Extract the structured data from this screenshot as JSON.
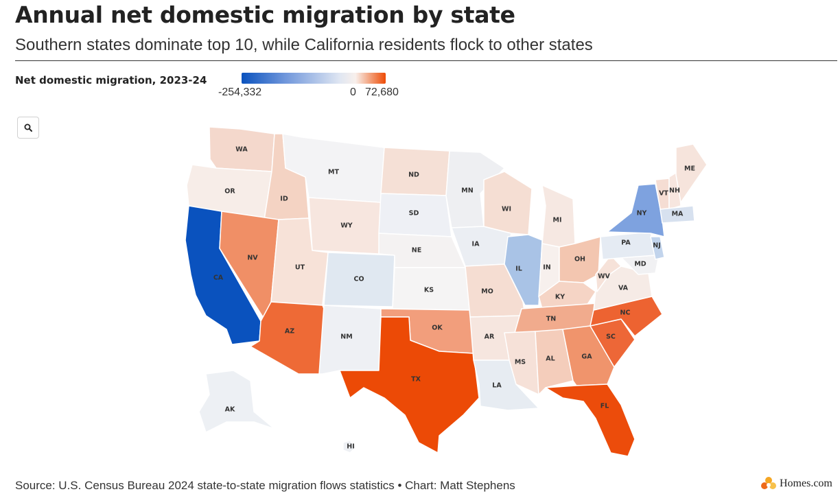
{
  "header": {
    "title": "Annual net domestic migration by state",
    "subtitle": "Southern states dominate top 10, while California residents flock to other states"
  },
  "legend": {
    "title": "Net domestic migration, 2023-24",
    "min_label": "-254,332",
    "zero_label": "0",
    "max_label": "72,680",
    "colors": {
      "min": "#0a52be",
      "zero": "#f8f0ec",
      "max": "#ee4b06"
    }
  },
  "controls": {
    "zoom_icon": "search-icon"
  },
  "footer": {
    "source": "Source: U.S. Census Bureau 2024 state-to-state migration flows statistics • Chart: Matt Stephens",
    "brand": "Homes.com",
    "brand_icon": "homes-logo-icon"
  },
  "map_data": {
    "type": "choropleth",
    "region": "United States",
    "states": [
      {
        "abbr": "WA",
        "color": "#f4d8cc"
      },
      {
        "abbr": "OR",
        "color": "#f7ede8"
      },
      {
        "abbr": "CA",
        "color": "#0a52be"
      },
      {
        "abbr": "ID",
        "color": "#f4d3c3"
      },
      {
        "abbr": "NV",
        "color": "#f08f66"
      },
      {
        "abbr": "MT",
        "color": "#f3f3f5"
      },
      {
        "abbr": "WY",
        "color": "#f7e6df"
      },
      {
        "abbr": "UT",
        "color": "#f7e2d8"
      },
      {
        "abbr": "AZ",
        "color": "#ee6a36"
      },
      {
        "abbr": "CO",
        "color": "#e0e8f1"
      },
      {
        "abbr": "NM",
        "color": "#eef0f4"
      },
      {
        "abbr": "ND",
        "color": "#f5e0d6"
      },
      {
        "abbr": "SD",
        "color": "#eef0f5"
      },
      {
        "abbr": "NE",
        "color": "#f4f2f2"
      },
      {
        "abbr": "KS",
        "color": "#f5f4f4"
      },
      {
        "abbr": "OK",
        "color": "#f29e7c"
      },
      {
        "abbr": "TX",
        "color": "#ec4a06"
      },
      {
        "abbr": "MN",
        "color": "#eeeff2"
      },
      {
        "abbr": "IA",
        "color": "#ebeef3"
      },
      {
        "abbr": "MO",
        "color": "#f5ddd2"
      },
      {
        "abbr": "AR",
        "color": "#f6e6df"
      },
      {
        "abbr": "LA",
        "color": "#e7ecf2"
      },
      {
        "abbr": "WI",
        "color": "#f5ded3"
      },
      {
        "abbr": "IL",
        "color": "#a9c3e6"
      },
      {
        "abbr": "MI",
        "color": "#f6e8e2"
      },
      {
        "abbr": "IN",
        "color": "#f7f0ed"
      },
      {
        "abbr": "OH",
        "color": "#f3c6b0"
      },
      {
        "abbr": "KY",
        "color": "#f5d4c5"
      },
      {
        "abbr": "TN",
        "color": "#f1ab8d"
      },
      {
        "abbr": "MS",
        "color": "#f6e1d8"
      },
      {
        "abbr": "AL",
        "color": "#f4cdbb"
      },
      {
        "abbr": "GA",
        "color": "#f0946c"
      },
      {
        "abbr": "FL",
        "color": "#ec4c0b"
      },
      {
        "abbr": "SC",
        "color": "#ed6737"
      },
      {
        "abbr": "NC",
        "color": "#ed6331"
      },
      {
        "abbr": "VA",
        "color": "#f6ebe6"
      },
      {
        "abbr": "WV",
        "color": "#f6e2d9"
      },
      {
        "abbr": "MD",
        "color": "#f1f1f3"
      },
      {
        "abbr": "PA",
        "color": "#e5ebf3"
      },
      {
        "abbr": "NY",
        "color": "#7ea2df"
      },
      {
        "abbr": "NJ",
        "color": "#c2d4ec"
      },
      {
        "abbr": "VT",
        "color": "#f5ddd3"
      },
      {
        "abbr": "NH",
        "color": "#f7e6df"
      },
      {
        "abbr": "ME",
        "color": "#f6e4dc"
      },
      {
        "abbr": "MA",
        "color": "#d7e1ef"
      },
      {
        "abbr": "AK",
        "color": "#edf0f4"
      },
      {
        "abbr": "HI",
        "color": "#eef0f4"
      }
    ]
  }
}
